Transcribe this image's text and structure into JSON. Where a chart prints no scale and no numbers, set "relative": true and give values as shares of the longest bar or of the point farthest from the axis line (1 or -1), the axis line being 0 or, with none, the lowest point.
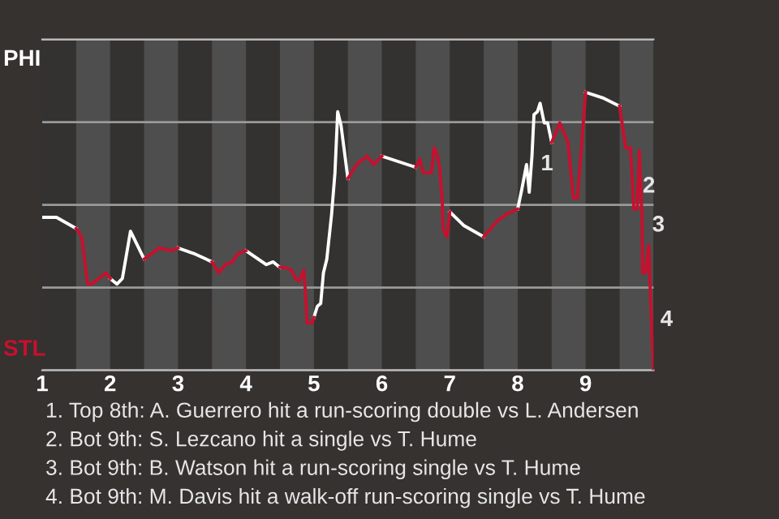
{
  "chart_data": {
    "type": "line",
    "relative": true,
    "xlim": [
      1,
      10
    ],
    "xticks": [
      1,
      2,
      3,
      4,
      5,
      6,
      7,
      8,
      9
    ],
    "tick_labels": "x",
    "grid": "y",
    "series": [
      {
        "color": "#ffffff",
        "x": [
          1.0,
          1.21,
          1.5,
          null,
          2.0,
          2.1,
          2.18,
          2.3,
          2.5,
          null,
          3.0,
          3.23,
          3.5,
          null,
          4.0,
          4.3,
          4.4,
          4.5,
          null,
          5.0,
          5.05,
          5.1,
          5.14,
          5.19,
          5.26,
          5.31,
          5.35,
          5.4,
          5.5,
          null,
          6.0,
          6.5,
          null,
          7.0,
          7.21,
          7.5,
          null,
          8.0,
          8.06,
          8.13,
          8.17,
          8.21,
          8.24,
          8.29,
          8.33,
          8.39,
          8.44,
          8.5,
          null,
          9.0,
          9.25,
          9.5
        ],
        "values": [
          0.55,
          0.55,
          0.51,
          null,
          0.33,
          0.31,
          0.33,
          0.5,
          0.4,
          null,
          0.44,
          0.42,
          0.39,
          null,
          0.43,
          0.38,
          0.39,
          0.37,
          null,
          0.19,
          0.23,
          0.24,
          0.35,
          0.4,
          0.56,
          0.71,
          0.93,
          0.88,
          0.69,
          null,
          0.77,
          0.73,
          null,
          0.57,
          0.52,
          0.48,
          null,
          0.58,
          0.65,
          0.74,
          0.64,
          0.77,
          0.92,
          0.93,
          0.96,
          0.89,
          0.89,
          0.82,
          null,
          1.0,
          0.98,
          0.95
        ]
      },
      {
        "color": "#c8102e",
        "x": [
          1.5,
          1.58,
          1.67,
          1.73,
          1.83,
          1.94,
          2.0,
          null,
          2.5,
          2.72,
          2.91,
          3.0,
          null,
          3.5,
          3.6,
          3.7,
          3.8,
          3.88,
          4.0,
          null,
          4.5,
          4.58,
          4.67,
          4.73,
          4.78,
          4.85,
          4.87,
          4.9,
          4.97,
          5.0,
          null,
          5.5,
          5.63,
          5.78,
          5.88,
          6.0,
          null,
          6.5,
          6.56,
          6.61,
          6.73,
          6.77,
          6.82,
          6.85,
          6.89,
          6.9,
          6.96,
          7.0,
          null,
          7.5,
          7.71,
          7.83,
          8.0,
          null,
          8.5,
          8.62,
          8.74,
          8.82,
          8.88,
          9.0,
          null,
          9.5,
          9.59,
          9.66,
          9.71,
          9.76,
          9.79,
          9.83,
          9.84,
          9.88,
          9.93,
          9.95,
          9.98,
          10.0
        ],
        "values": [
          0.51,
          0.48,
          0.31,
          0.31,
          0.33,
          0.35,
          0.33,
          null,
          0.4,
          0.44,
          0.43,
          0.44,
          null,
          0.39,
          0.35,
          0.38,
          0.39,
          0.42,
          0.43,
          null,
          0.37,
          0.37,
          0.36,
          0.33,
          0.32,
          0.36,
          0.3,
          0.17,
          0.17,
          0.19,
          null,
          0.69,
          0.74,
          0.77,
          0.74,
          0.77,
          null,
          0.73,
          0.76,
          0.71,
          0.71,
          0.8,
          0.77,
          0.73,
          0.61,
          0.51,
          0.48,
          0.57,
          null,
          0.48,
          0.54,
          0.56,
          0.58,
          null,
          0.82,
          0.89,
          0.82,
          0.62,
          0.62,
          1.0,
          null,
          0.95,
          0.8,
          0.8,
          0.58,
          0.58,
          0.79,
          0.55,
          0.35,
          0.35,
          0.45,
          0.3,
          0.11,
          0.0
        ]
      }
    ],
    "bands": [
      {
        "axis": "x",
        "from": 1.5,
        "to": 2,
        "label": null,
        "color": "#4e4e4e"
      },
      {
        "axis": "x",
        "from": 2.5,
        "to": 3,
        "label": null,
        "color": "#4e4e4e"
      },
      {
        "axis": "x",
        "from": 3.5,
        "to": 4,
        "label": null,
        "color": "#4e4e4e"
      },
      {
        "axis": "x",
        "from": 4.5,
        "to": 5,
        "label": null,
        "color": "#4e4e4e"
      },
      {
        "axis": "x",
        "from": 5.5,
        "to": 6,
        "label": null,
        "color": "#4e4e4e"
      },
      {
        "axis": "x",
        "from": 6.5,
        "to": 7,
        "label": null,
        "color": "#4e4e4e"
      },
      {
        "axis": "x",
        "from": 7.5,
        "to": 8,
        "label": null,
        "color": "#4e4e4e"
      },
      {
        "axis": "x",
        "from": 8.5,
        "to": 9,
        "label": null,
        "color": "#4e4e4e"
      },
      {
        "axis": "x",
        "from": 9.5,
        "to": 10,
        "label": null,
        "color": "#4e4e4e"
      }
    ],
    "annotations": [
      "PHI",
      "STL",
      {
        "text": "1",
        "x": 8.24,
        "y": 0.74
      },
      {
        "text": "2",
        "x": 9.74,
        "y": 0.66
      },
      {
        "text": "3",
        "x": 9.88,
        "y": 0.52
      },
      {
        "text": "4",
        "x": 10.0,
        "y": 0.18
      },
      "1. Top 8th: A. Guerrero hit a run-scoring double vs L. Andersen",
      "2. Bot 9th: S. Lezcano hit a single vs T. Hume",
      "3. Bot 9th: B. Watson hit a run-scoring single vs T. Hume",
      "4. Bot 9th: M. Davis hit a walk-off run-scoring single vs T. Hume"
    ]
  }
}
